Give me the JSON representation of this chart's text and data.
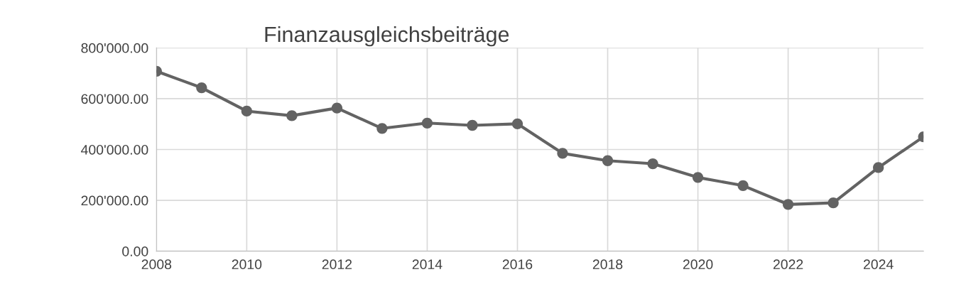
{
  "chart_data": {
    "type": "line",
    "title": "Finanzausgleichsbeiträge",
    "x": [
      2008,
      2009,
      2010,
      2011,
      2012,
      2013,
      2014,
      2015,
      2016,
      2017,
      2018,
      2019,
      2020,
      2021,
      2022,
      2023,
      2024,
      2025
    ],
    "series": [
      {
        "color": "#636363",
        "values": [
          708000,
          643000,
          551000,
          533000,
          563000,
          483000,
          504000,
          495000,
          501000,
          385000,
          356000,
          344000,
          290000,
          258000,
          184000,
          190000,
          329000,
          450000
        ]
      }
    ],
    "xlim": [
      2008,
      2025
    ],
    "xticks": [
      2008,
      2010,
      2012,
      2014,
      2016,
      2018,
      2020,
      2022,
      2024
    ],
    "ylim": [
      0,
      800000
    ],
    "yticks": [
      {
        "value": 0,
        "label": "0.00"
      },
      {
        "value": 200000,
        "label": "200'000.00"
      },
      {
        "value": 400000,
        "label": "400'000.00"
      },
      {
        "value": 600000,
        "label": "600'000.00"
      },
      {
        "value": 800000,
        "label": "800'000.00"
      }
    ],
    "grid": true,
    "marker": "circle",
    "line_style": "solid",
    "legend": false
  }
}
